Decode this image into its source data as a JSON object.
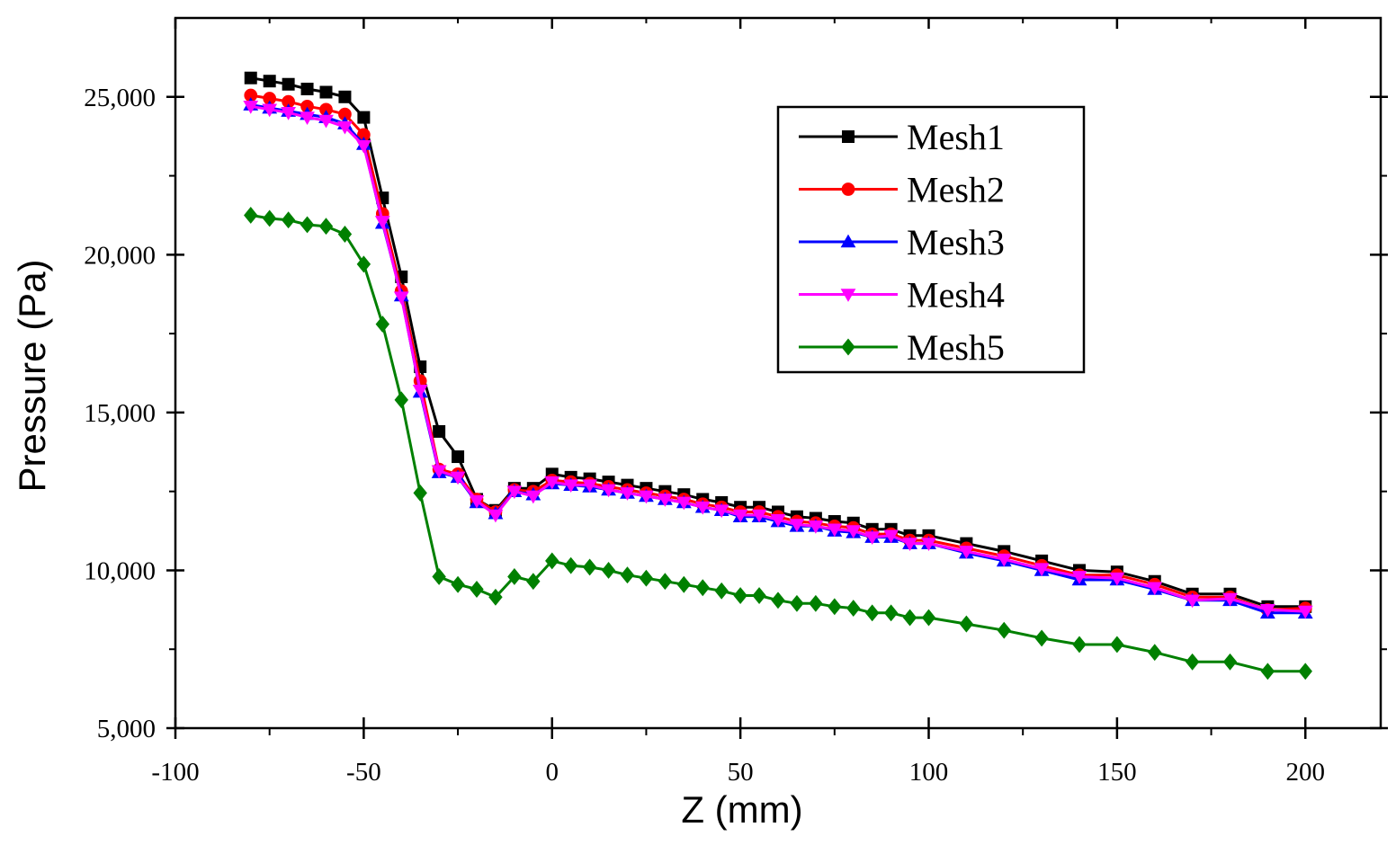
{
  "chart_data": {
    "type": "line",
    "title": "",
    "xlabel": "Z (mm)",
    "ylabel": "Pressure (Pa)",
    "xlim": [
      -100,
      220
    ],
    "ylim": [
      5000,
      27500
    ],
    "xticks": [
      -100,
      -50,
      0,
      50,
      100,
      150,
      200
    ],
    "xtick_labels": [
      "-100",
      "-50",
      "0",
      "50",
      "100",
      "150",
      "200"
    ],
    "yticks": [
      5000,
      10000,
      15000,
      20000,
      25000
    ],
    "ytick_labels": [
      "5,000",
      "10,000",
      "15,000",
      "20,000",
      "25,000"
    ],
    "grid": false,
    "legend_position": "top-right",
    "x": [
      -80,
      -75,
      -70,
      -65,
      -60,
      -55,
      -50,
      -45,
      -40,
      -35,
      -30,
      -25,
      -20,
      -15,
      -10,
      -5,
      0,
      5,
      10,
      15,
      20,
      25,
      30,
      35,
      40,
      45,
      50,
      55,
      60,
      65,
      70,
      75,
      80,
      85,
      90,
      95,
      100,
      110,
      120,
      130,
      140,
      150,
      160,
      170,
      180,
      190,
      200
    ],
    "series": [
      {
        "name": "Mesh1",
        "color": "#000000",
        "marker": "square",
        "values": [
          25600,
          25500,
          25400,
          25250,
          25150,
          25000,
          24350,
          21800,
          19300,
          16450,
          14400,
          13600,
          12250,
          11900,
          12600,
          12600,
          13050,
          12950,
          12900,
          12800,
          12700,
          12600,
          12500,
          12400,
          12250,
          12150,
          12000,
          12000,
          11850,
          11700,
          11650,
          11550,
          11500,
          11300,
          11300,
          11100,
          11100,
          10850,
          10600,
          10300,
          10000,
          9950,
          9650,
          9250,
          9250,
          8850,
          8850
        ]
      },
      {
        "name": "Mesh2",
        "color": "#ff0000",
        "marker": "circle",
        "values": [
          25050,
          24950,
          24850,
          24700,
          24600,
          24450,
          23800,
          21300,
          18850,
          16000,
          13200,
          13050,
          12250,
          11850,
          12550,
          12500,
          12850,
          12800,
          12750,
          12650,
          12550,
          12450,
          12350,
          12250,
          12100,
          12000,
          11850,
          11850,
          11700,
          11550,
          11500,
          11400,
          11350,
          11150,
          11150,
          10950,
          10950,
          10700,
          10450,
          10150,
          9850,
          9850,
          9550,
          9150,
          9150,
          8750,
          8800
        ]
      },
      {
        "name": "Mesh3",
        "color": "#0000ff",
        "marker": "triangle-up",
        "values": [
          24750,
          24650,
          24550,
          24450,
          24350,
          24150,
          23500,
          21000,
          18700,
          15650,
          13100,
          12950,
          12150,
          11800,
          12500,
          12400,
          12750,
          12700,
          12650,
          12550,
          12450,
          12350,
          12250,
          12150,
          12000,
          11900,
          11700,
          11700,
          11550,
          11400,
          11400,
          11250,
          11200,
          11050,
          11050,
          10850,
          10850,
          10550,
          10300,
          10000,
          9700,
          9700,
          9400,
          9050,
          9050,
          8650,
          8650
        ]
      },
      {
        "name": "Mesh4",
        "color": "#ff00ff",
        "marker": "triangle-down",
        "values": [
          24700,
          24600,
          24500,
          24350,
          24250,
          24050,
          23450,
          21050,
          18650,
          15700,
          13150,
          12950,
          12200,
          11750,
          12500,
          12350,
          12800,
          12700,
          12700,
          12550,
          12450,
          12350,
          12250,
          12150,
          12000,
          11900,
          11750,
          11750,
          11600,
          11450,
          11400,
          11300,
          11250,
          11050,
          11100,
          10850,
          10850,
          10600,
          10350,
          10050,
          9800,
          9750,
          9450,
          9050,
          9100,
          8750,
          8700
        ]
      },
      {
        "name": "Mesh5",
        "color": "#008000",
        "marker": "diamond",
        "values": [
          21250,
          21150,
          21100,
          20950,
          20900,
          20650,
          19700,
          17800,
          15400,
          12450,
          9800,
          9550,
          9400,
          9150,
          9800,
          9650,
          10300,
          10150,
          10100,
          10000,
          9850,
          9750,
          9650,
          9550,
          9450,
          9350,
          9200,
          9200,
          9050,
          8950,
          8950,
          8850,
          8800,
          8650,
          8650,
          8500,
          8500,
          8300,
          8100,
          7850,
          7650,
          7650,
          7400,
          7100,
          7100,
          6800,
          6800
        ]
      }
    ]
  }
}
